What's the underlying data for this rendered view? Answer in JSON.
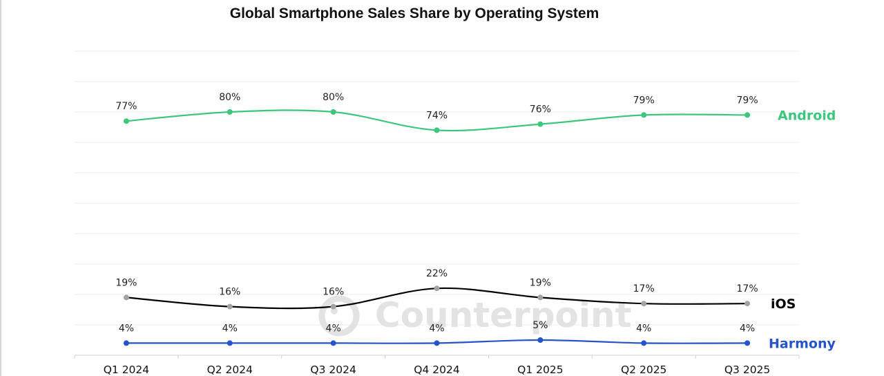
{
  "chart_data": {
    "type": "line",
    "title": "Global Smartphone Sales Share by Operating System",
    "xlabel": "",
    "ylabel": "",
    "ylim": [
      0,
      100
    ],
    "grid": true,
    "y_axis_visible": false,
    "categories": [
      "Q1 2024",
      "Q2 2024",
      "Q3 2024",
      "Q4 2024",
      "Q1 2025",
      "Q2 2025",
      "Q3 2025"
    ],
    "series": [
      {
        "name": "Android",
        "color": "#3cc77c",
        "marker_color": "#3cc77c",
        "values": [
          77,
          80,
          80,
          74,
          76,
          79,
          79
        ],
        "labels": [
          "77%",
          "80%",
          "80%",
          "74%",
          "76%",
          "79%",
          "79%"
        ]
      },
      {
        "name": "iOS",
        "color": "#000000",
        "marker_color": "#a3a3a3",
        "values": [
          19,
          16,
          16,
          22,
          19,
          17,
          17
        ],
        "labels": [
          "19%",
          "16%",
          "16%",
          "22%",
          "19%",
          "17%",
          "17%"
        ]
      },
      {
        "name": "Harmony",
        "color": "#2453cc",
        "marker_color": "#2453cc",
        "values": [
          4,
          4,
          4,
          4,
          5,
          4,
          4
        ],
        "labels": [
          "4%",
          "4%",
          "4%",
          "4%",
          "5%",
          "4%",
          "4%"
        ]
      }
    ],
    "legend": "right-end-of-lines",
    "watermark": "Counterpoint"
  },
  "colors": {
    "grid": "#efefef",
    "axis": "#d0d0d0",
    "android_label": "#3cc77c",
    "ios_label": "#000000",
    "harmony_label": "#2453cc"
  }
}
